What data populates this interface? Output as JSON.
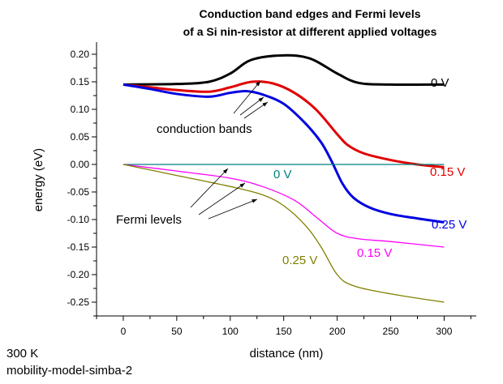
{
  "chart_data": {
    "type": "line",
    "title": [
      "Conduction band edges and Fermi levels",
      "of a Si nin-resistor at different applied voltages"
    ],
    "xlabel": "distance (nm)",
    "ylabel": "energy (eV)",
    "xlim": [
      -25,
      330
    ],
    "ylim": [
      -0.275,
      0.222
    ],
    "xticks": [
      0,
      50,
      100,
      150,
      200,
      250,
      300
    ],
    "yticks": [
      0.2,
      0.15,
      0.1,
      0.05,
      0.0,
      -0.05,
      -0.1,
      -0.15,
      -0.2,
      -0.25
    ],
    "ytick_labels": [
      "0.20",
      "0.15",
      "0.10",
      "0.05",
      "0.00",
      "-0.05",
      "-0.10",
      "-0.15",
      "-0.20",
      "-0.25"
    ],
    "grid": false,
    "series": [
      {
        "name": "0 V",
        "group": "conduction bands",
        "color": "#000000",
        "x": [
          0,
          50,
          80,
          100,
          120,
          150,
          175,
          200,
          220,
          250,
          300
        ],
        "y": [
          0.145,
          0.146,
          0.15,
          0.165,
          0.19,
          0.198,
          0.192,
          0.165,
          0.148,
          0.145,
          0.145
        ]
      },
      {
        "name": "0.15 V",
        "group": "conduction bands",
        "color": "#e00000",
        "x": [
          0,
          25,
          50,
          80,
          100,
          120,
          140,
          160,
          180,
          200,
          210,
          225,
          250,
          275,
          300
        ],
        "y": [
          0.145,
          0.14,
          0.135,
          0.132,
          0.14,
          0.15,
          0.147,
          0.13,
          0.1,
          0.055,
          0.035,
          0.02,
          0.008,
          0.0,
          -0.005
        ]
      },
      {
        "name": "0.25 V",
        "group": "conduction bands",
        "color": "#0000e0",
        "x": [
          0,
          25,
          50,
          80,
          100,
          115,
          130,
          150,
          170,
          185,
          195,
          205,
          215,
          230,
          250,
          275,
          300
        ],
        "y": [
          0.145,
          0.137,
          0.128,
          0.123,
          0.13,
          0.133,
          0.127,
          0.11,
          0.075,
          0.04,
          0.005,
          -0.035,
          -0.06,
          -0.078,
          -0.09,
          -0.098,
          -0.105
        ]
      },
      {
        "name": "0 V",
        "group": "Fermi levels",
        "color": "#008080",
        "x": [
          0,
          300
        ],
        "y": [
          0.0,
          0.0
        ]
      },
      {
        "name": "0.15 V",
        "group": "Fermi levels",
        "color": "#ff00ff",
        "x": [
          0,
          50,
          100,
          130,
          160,
          180,
          200,
          220,
          250,
          300
        ],
        "y": [
          0.0,
          -0.012,
          -0.025,
          -0.04,
          -0.065,
          -0.095,
          -0.125,
          -0.135,
          -0.14,
          -0.15
        ]
      },
      {
        "name": "0.25 V",
        "group": "Fermi levels",
        "color": "#808000",
        "x": [
          0,
          50,
          100,
          130,
          150,
          170,
          185,
          200,
          215,
          250,
          300
        ],
        "y": [
          0.0,
          -0.02,
          -0.04,
          -0.055,
          -0.075,
          -0.11,
          -0.15,
          -0.2,
          -0.22,
          -0.235,
          -0.25
        ]
      }
    ],
    "annotations": [
      "conduction bands",
      "Fermi levels"
    ]
  },
  "footer": {
    "temperature": "300 K",
    "model": "mobility-model-simba-2"
  }
}
